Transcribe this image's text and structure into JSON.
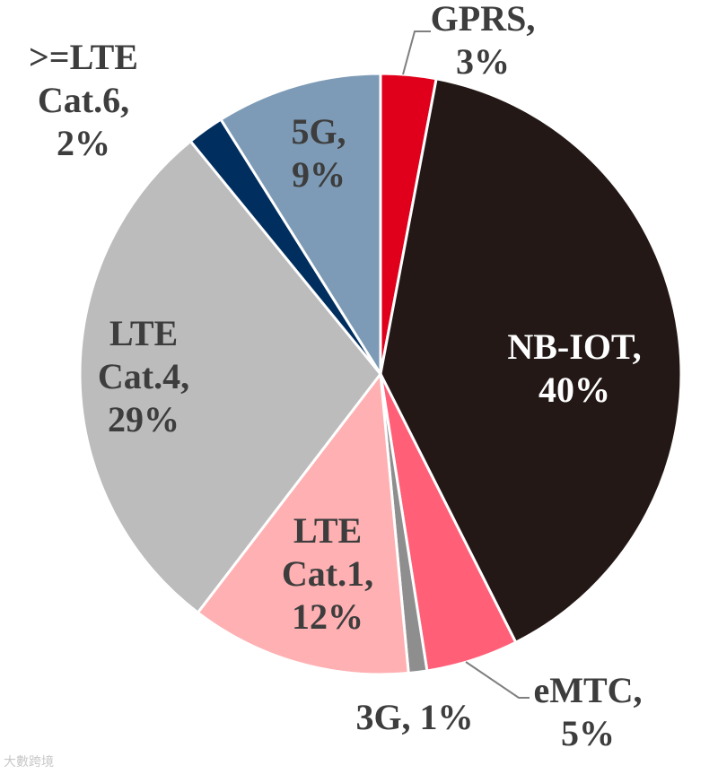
{
  "chart_data": {
    "type": "pie",
    "slices": [
      {
        "name": "GPRS",
        "value": 3,
        "label_lines": [
          "GPRS,",
          "3%"
        ],
        "color": "#e0001b",
        "label_color": "#3d3d3d"
      },
      {
        "name": "NB-IOT",
        "value": 40,
        "label_lines": [
          "NB-IOT,",
          "40%"
        ],
        "color": "#231816",
        "label_color": "#ffffff"
      },
      {
        "name": "eMTC",
        "value": 5,
        "label_lines": [
          "eMTC,",
          "5%"
        ],
        "color": "#ff6078",
        "label_color": "#3d3d3d"
      },
      {
        "name": "3G",
        "value": 1,
        "label_lines": [
          "3G, 1%"
        ],
        "color": "#8e8e8e",
        "label_color": "#3d3d3d"
      },
      {
        "name": "LTE Cat.1",
        "value": 12,
        "label_lines": [
          "LTE",
          "Cat.1,",
          "12%"
        ],
        "color": "#ffb0b2",
        "label_color": "#3d3d3d"
      },
      {
        "name": "LTE Cat.4",
        "value": 29,
        "label_lines": [
          "LTE",
          "Cat.4,",
          "29%"
        ],
        "color": "#bcbcbc",
        "label_color": "#3d3d3d"
      },
      {
        "name": ">=LTE Cat.6",
        "value": 2,
        "label_lines": [
          ">=LTE",
          "Cat.6,",
          "2%"
        ],
        "color": "#002e5e",
        "label_color": "#3d3d3d"
      },
      {
        "name": "5G",
        "value": 9,
        "label_lines": [
          "5G,",
          "9%"
        ],
        "color": "#7d9bb6",
        "label_color": "#3d3d3d"
      }
    ]
  },
  "watermark": "大數跨境"
}
